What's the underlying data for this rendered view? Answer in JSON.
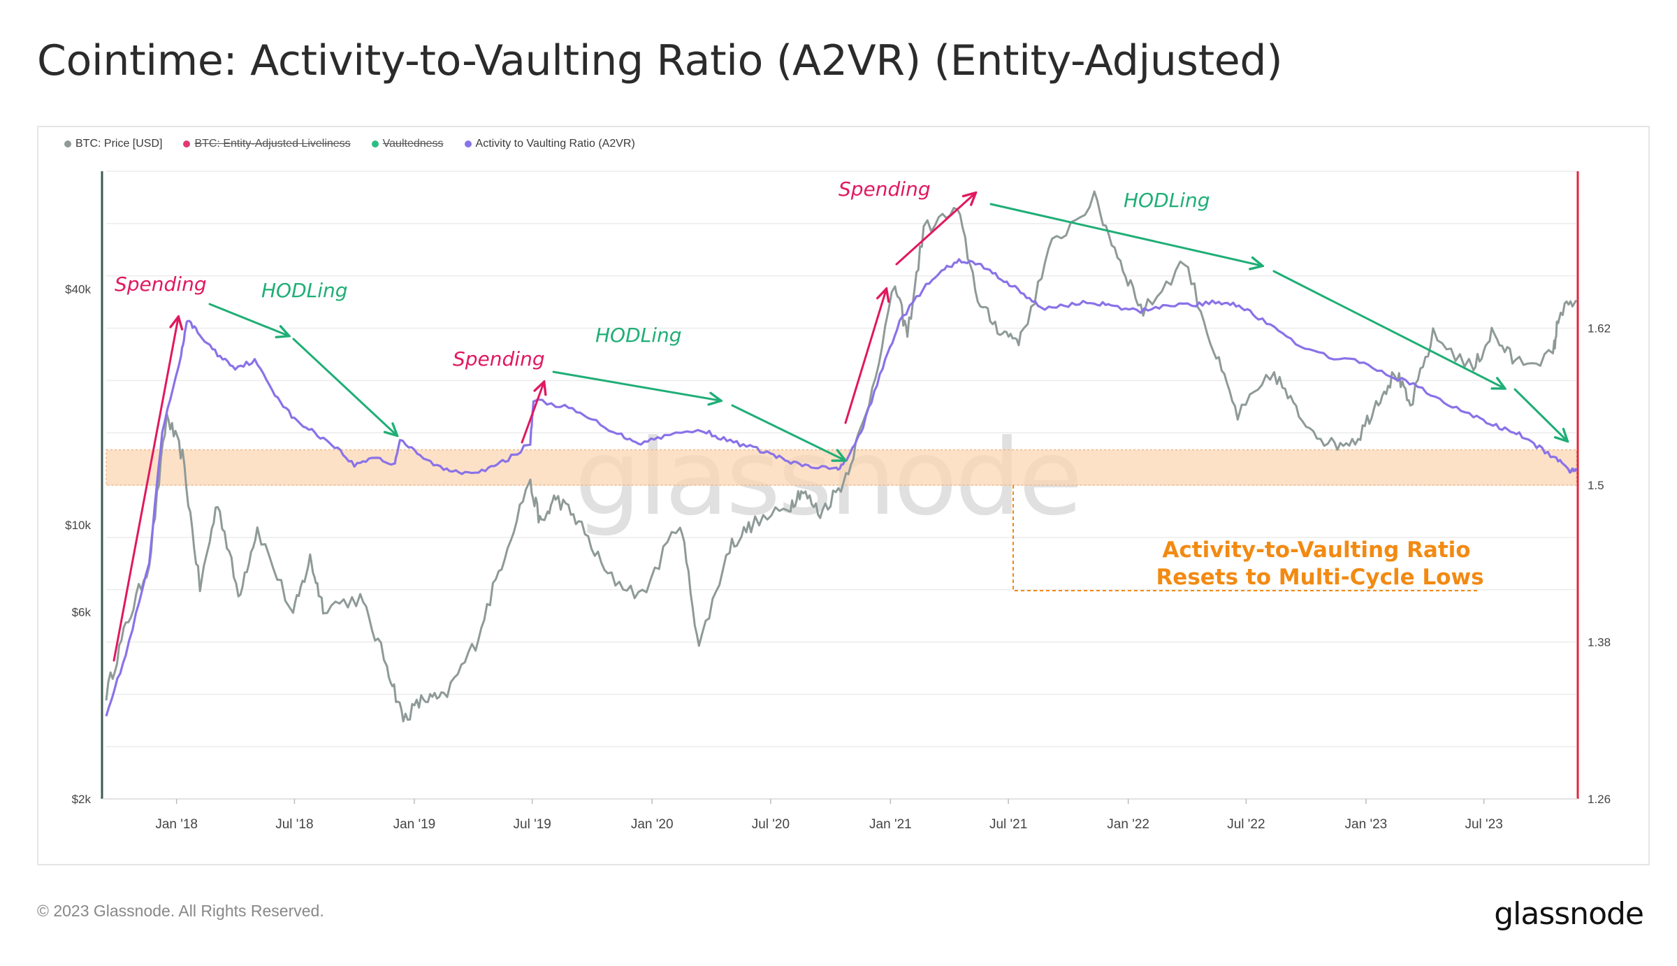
{
  "title": "Cointime: Activity-to-Vaulting Ratio (A2VR) (Entity-Adjusted)",
  "footer": {
    "copyright": "© 2023 Glassnode. All Rights Reserved.",
    "logo": "glassnode"
  },
  "watermark": "glassnode",
  "colors": {
    "price": "#8e9a98",
    "a2vr": "#8a72e8",
    "liveliness": "#e03b6e",
    "vaultedness": "#2bbd85",
    "spending": "#e0185f",
    "hodling": "#1fae76",
    "band": "#fbd7b4",
    "band_border": "#f1b886",
    "callout": "#f28a12",
    "right_axis": "#e0263e",
    "left_axis": "#3b5a52",
    "grid": "#ececec",
    "tick_text": "#444444"
  },
  "annotations": {
    "spending_label": "Spending",
    "hodling_label": "HODLing",
    "callout_line1": "Activity-to-Vaulting Ratio",
    "callout_line2": "Resets to Multi-Cycle Lows"
  },
  "chart_data": {
    "type": "line",
    "legend": [
      {
        "name": "BTC: Price [USD]",
        "color": "#8e9a98",
        "hidden": false
      },
      {
        "name": "BTC: Entity-Adjusted Liveliness",
        "color": "#e03b6e",
        "hidden": true
      },
      {
        "name": "Vaultedness",
        "color": "#2bbd85",
        "hidden": true
      },
      {
        "name": "Activity to Vaulting Ratio (A2VR)",
        "color": "#8a72e8",
        "hidden": false
      }
    ],
    "legend_position": "top-left",
    "x_ticks": [
      "Jan '18",
      "Jul '18",
      "Jan '19",
      "Jul '19",
      "Jan '20",
      "Jul '20",
      "Jan '21",
      "Jul '21",
      "Jan '22",
      "Jul '22",
      "Jan '23",
      "Jul '23"
    ],
    "x_range": [
      "2017-09-15",
      "2023-11-20"
    ],
    "y_left": {
      "scale": "log",
      "range": [
        2000,
        80000
      ],
      "ticks": [
        "$2k",
        "$6k",
        "$10k",
        "$40k"
      ],
      "tick_values": [
        2000,
        6000,
        10000,
        40000
      ]
    },
    "y_right": {
      "scale": "linear",
      "range": [
        1.26,
        1.74
      ],
      "ticks": [
        "1.26",
        "1.38",
        "1.5",
        "1.62"
      ],
      "tick_values": [
        1.26,
        1.38,
        1.5,
        1.62
      ]
    },
    "highlight_band": [
      1.5,
      1.527
    ],
    "series": [
      {
        "name": "BTC: Price [USD]",
        "axis": "left",
        "points": [
          [
            "2017-09-15",
            3700
          ],
          [
            "2017-10-15",
            5500
          ],
          [
            "2017-11-20",
            8000
          ],
          [
            "2017-12-17",
            19000
          ],
          [
            "2018-01-10",
            15000
          ],
          [
            "2018-02-06",
            6900
          ],
          [
            "2018-03-05",
            11500
          ],
          [
            "2018-04-06",
            6600
          ],
          [
            "2018-05-05",
            9800
          ],
          [
            "2018-06-29",
            5900
          ],
          [
            "2018-07-25",
            8200
          ],
          [
            "2018-08-14",
            6200
          ],
          [
            "2018-10-10",
            6500
          ],
          [
            "2018-11-20",
            4400
          ],
          [
            "2018-12-15",
            3200
          ],
          [
            "2019-01-15",
            3600
          ],
          [
            "2019-02-15",
            3600
          ],
          [
            "2019-04-05",
            5000
          ],
          [
            "2019-05-15",
            8000
          ],
          [
            "2019-06-26",
            13000
          ],
          [
            "2019-07-15",
            10000
          ],
          [
            "2019-08-06",
            11800
          ],
          [
            "2019-09-10",
            10200
          ],
          [
            "2019-10-25",
            7400
          ],
          [
            "2019-12-17",
            6600
          ],
          [
            "2020-02-13",
            10300
          ],
          [
            "2020-03-13",
            4900
          ],
          [
            "2020-04-29",
            8800
          ],
          [
            "2020-06-01",
            10000
          ],
          [
            "2020-07-27",
            11000
          ],
          [
            "2020-08-17",
            12300
          ],
          [
            "2020-09-15",
            10700
          ],
          [
            "2020-10-21",
            12900
          ],
          [
            "2020-11-24",
            19000
          ],
          [
            "2021-01-08",
            41000
          ],
          [
            "2021-01-27",
            30500
          ],
          [
            "2021-02-21",
            57000
          ],
          [
            "2021-04-14",
            63500
          ],
          [
            "2021-05-19",
            36000
          ],
          [
            "2021-06-22",
            31000
          ],
          [
            "2021-07-20",
            29800
          ],
          [
            "2021-09-06",
            52000
          ],
          [
            "2021-11-10",
            68000
          ],
          [
            "2021-12-20",
            47000
          ],
          [
            "2022-01-24",
            35000
          ],
          [
            "2022-03-29",
            47500
          ],
          [
            "2022-05-12",
            28000
          ],
          [
            "2022-06-18",
            19000
          ],
          [
            "2022-08-13",
            24500
          ],
          [
            "2022-09-20",
            19000
          ],
          [
            "2022-11-09",
            16000
          ],
          [
            "2022-12-20",
            16700
          ],
          [
            "2023-01-20",
            21000
          ],
          [
            "2023-02-16",
            24500
          ],
          [
            "2023-03-10",
            20000
          ],
          [
            "2023-04-14",
            30500
          ],
          [
            "2023-06-15",
            25000
          ],
          [
            "2023-07-13",
            31000
          ],
          [
            "2023-08-18",
            26000
          ],
          [
            "2023-10-15",
            27000
          ],
          [
            "2023-10-24",
            34500
          ],
          [
            "2023-11-20",
            37500
          ]
        ]
      },
      {
        "name": "Activity to Vaulting Ratio (A2VR)",
        "axis": "right",
        "points": [
          [
            "2017-09-15",
            1.325
          ],
          [
            "2017-10-15",
            1.37
          ],
          [
            "2017-11-20",
            1.44
          ],
          [
            "2017-12-10",
            1.54
          ],
          [
            "2018-01-08",
            1.6
          ],
          [
            "2018-01-18",
            1.627
          ],
          [
            "2018-02-05",
            1.615
          ],
          [
            "2018-03-05",
            1.6
          ],
          [
            "2018-04-01",
            1.59
          ],
          [
            "2018-05-01",
            1.595
          ],
          [
            "2018-06-01",
            1.57
          ],
          [
            "2018-07-01",
            1.55
          ],
          [
            "2018-08-01",
            1.54
          ],
          [
            "2018-09-01",
            1.53
          ],
          [
            "2018-10-01",
            1.515
          ],
          [
            "2018-11-01",
            1.522
          ],
          [
            "2018-12-01",
            1.515
          ],
          [
            "2018-12-10",
            1.535
          ],
          [
            "2019-01-10",
            1.522
          ],
          [
            "2019-02-15",
            1.512
          ],
          [
            "2019-03-20",
            1.51
          ],
          [
            "2019-04-25",
            1.512
          ],
          [
            "2019-05-25",
            1.52
          ],
          [
            "2019-06-28",
            1.532
          ],
          [
            "2019-07-03",
            1.565
          ],
          [
            "2019-08-20",
            1.56
          ],
          [
            "2019-10-01",
            1.55
          ],
          [
            "2019-11-15",
            1.538
          ],
          [
            "2019-12-15",
            1.532
          ],
          [
            "2020-01-20",
            1.538
          ],
          [
            "2020-03-20",
            1.542
          ],
          [
            "2020-04-20",
            1.535
          ],
          [
            "2020-05-25",
            1.53
          ],
          [
            "2020-07-01",
            1.524
          ],
          [
            "2020-08-01",
            1.517
          ],
          [
            "2020-09-01",
            1.514
          ],
          [
            "2020-10-10",
            1.512
          ],
          [
            "2020-10-28",
            1.52
          ],
          [
            "2020-11-20",
            1.545
          ],
          [
            "2020-12-20",
            1.59
          ],
          [
            "2021-01-15",
            1.625
          ],
          [
            "2021-02-20",
            1.65
          ],
          [
            "2021-03-25",
            1.665
          ],
          [
            "2021-04-20",
            1.672
          ],
          [
            "2021-05-20",
            1.668
          ],
          [
            "2021-06-20",
            1.658
          ],
          [
            "2021-07-20",
            1.648
          ],
          [
            "2021-08-20",
            1.635
          ],
          [
            "2021-10-01",
            1.638
          ],
          [
            "2021-11-10",
            1.64
          ],
          [
            "2021-12-10",
            1.636
          ],
          [
            "2022-01-20",
            1.633
          ],
          [
            "2022-03-01",
            1.638
          ],
          [
            "2022-04-15",
            1.638
          ],
          [
            "2022-05-20",
            1.64
          ],
          [
            "2022-06-20",
            1.638
          ],
          [
            "2022-07-20",
            1.628
          ],
          [
            "2022-09-01",
            1.613
          ],
          [
            "2022-10-20",
            1.6
          ],
          [
            "2022-12-15",
            1.595
          ],
          [
            "2023-02-01",
            1.585
          ],
          [
            "2023-03-15",
            1.577
          ],
          [
            "2023-05-01",
            1.563
          ],
          [
            "2023-06-15",
            1.553
          ],
          [
            "2023-07-20",
            1.545
          ],
          [
            "2023-08-20",
            1.54
          ],
          [
            "2023-09-20",
            1.53
          ],
          [
            "2023-10-20",
            1.52
          ],
          [
            "2023-11-10",
            1.511
          ],
          [
            "2023-11-20",
            1.513
          ]
        ]
      }
    ]
  }
}
